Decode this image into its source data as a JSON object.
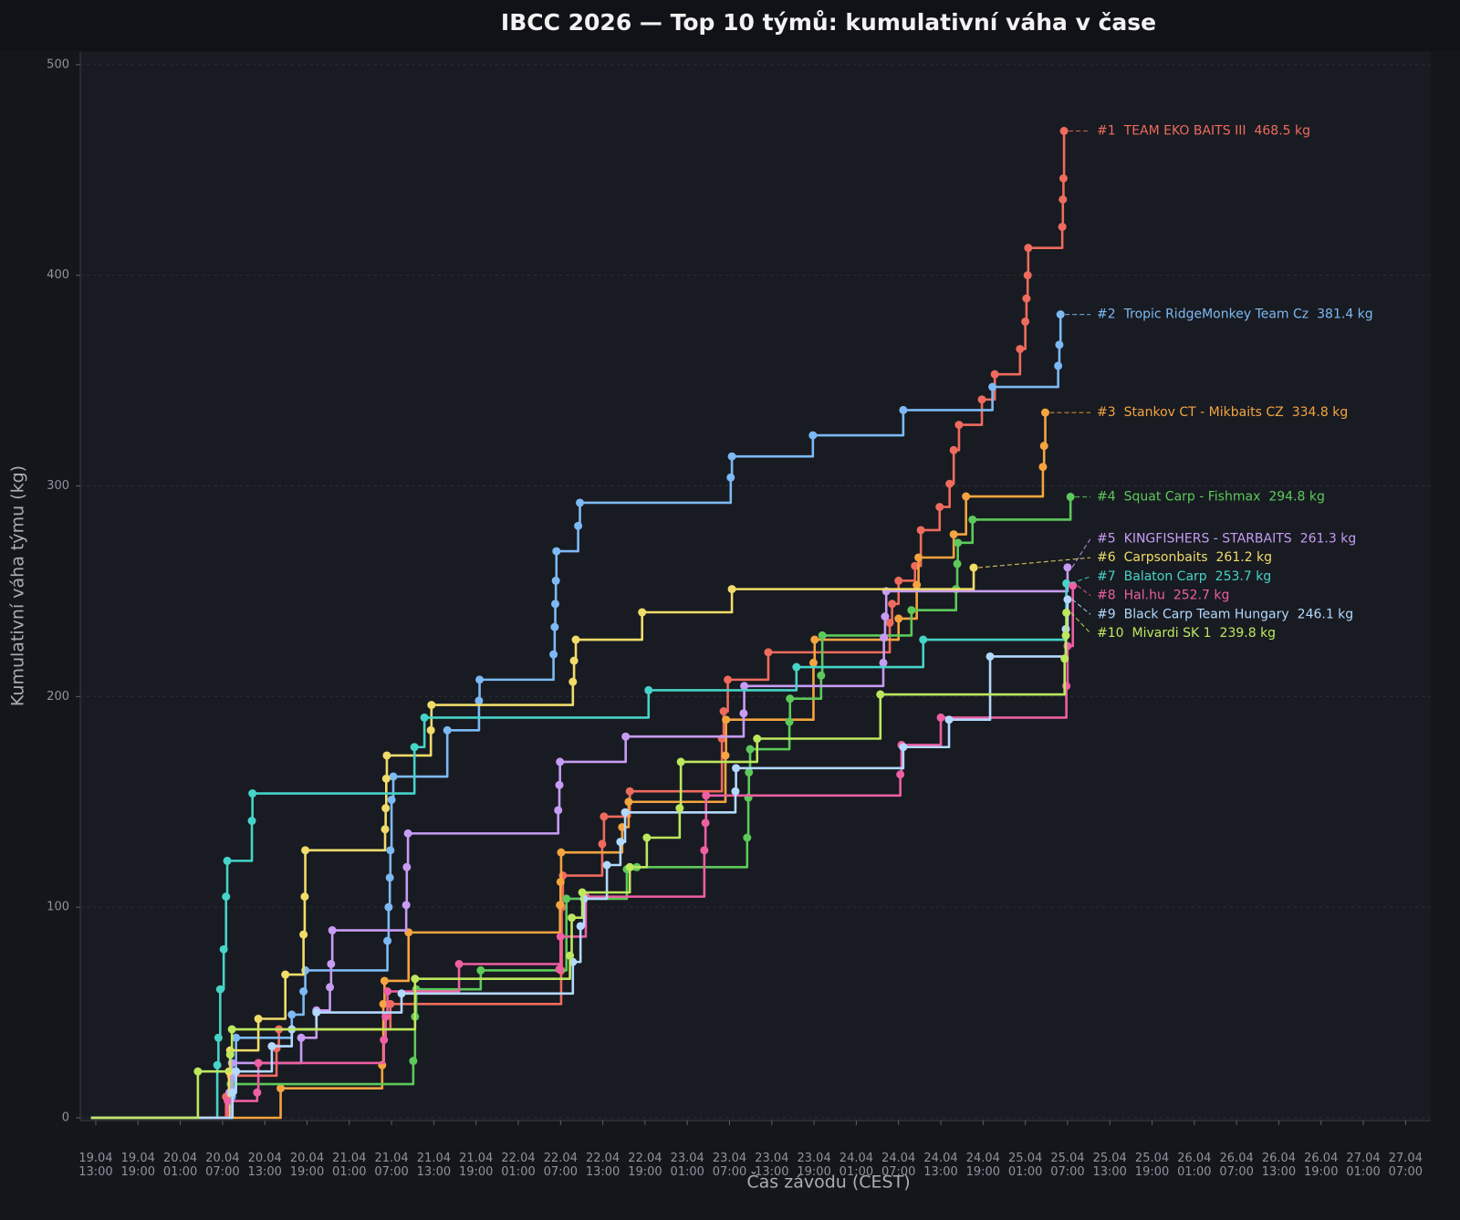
{
  "chart_data": {
    "type": "step",
    "title": "IBCC 2026 — Top 10 týmů: kumulativní váha v čase",
    "x_label": "Čas závodu (CEST)",
    "y_label": "Kumulativní váha týmu (kg)",
    "xlim": [
      "19.04 10:48",
      "27.04 10:35"
    ],
    "ylim": [
      -1.3,
      506
    ],
    "yticks": [
      0,
      100,
      200,
      300,
      400,
      500
    ],
    "xticks": [
      "19.04 13:00",
      "19.04 19:00",
      "20.04 01:00",
      "20.04 07:00",
      "20.04 13:00",
      "20.04 19:00",
      "21.04 01:00",
      "21.04 07:00",
      "21.04 13:00",
      "21.04 19:00",
      "22.04 01:00",
      "22.04 07:00",
      "22.04 13:00",
      "22.04 19:00",
      "23.04 01:00",
      "23.04 07:00",
      "23.04 13:00",
      "23.04 19:00",
      "24.04 01:00",
      "24.04 07:00",
      "24.04 13:00",
      "24.04 19:00",
      "25.04 01:00",
      "25.04 07:00",
      "25.04 13:00",
      "25.04 19:00",
      "26.04 01:00",
      "26.04 07:00",
      "26.04 13:00",
      "26.04 19:00",
      "27.04 01:00",
      "27.04 07:00"
    ],
    "grid": true,
    "series": [
      {
        "name": "TEAM EKO BAITS III",
        "rank": "#1",
        "value_label": "468.5 kg",
        "color": "#ef6b5e",
        "x": [
          "19.04 12:20",
          "20.04 07:30",
          "20.04 08:10",
          "20.04 14:40",
          "20.04 15:00",
          "21.04 06:50",
          "22.04 07:05",
          "22.04 07:10",
          "22.04 07:20",
          "22.04 12:55",
          "22.04 13:10",
          "22.04 16:50",
          "23.04 05:55",
          "23.04 06:10",
          "23.04 06:45",
          "23.04 12:30",
          "24.04 05:45",
          "24.04 06:05",
          "24.04 07:00",
          "24.04 09:20",
          "24.04 10:10",
          "24.04 12:50",
          "24.04 14:15",
          "24.04 14:50",
          "24.04 15:35",
          "24.04 18:50",
          "24.04 20:40",
          "25.04 00:15",
          "25.04 01:00",
          "25.04 01:10",
          "25.04 01:20",
          "25.04 01:25",
          "25.04 06:15",
          "25.04 06:20",
          "25.04 06:25",
          "25.04 06:30"
        ],
        "values": [
          0,
          10,
          20,
          33,
          42,
          54,
          70,
          100,
          115,
          130,
          143,
          155,
          180,
          193,
          208,
          221,
          235,
          244,
          255,
          262,
          279,
          290,
          301,
          317,
          329,
          341,
          353,
          365,
          378,
          389,
          400,
          413,
          423,
          436,
          446,
          468.5
        ]
      },
      {
        "name": "Tropic RidgeMonkey Team Cz",
        "rank": "#2",
        "value_label": "381.4 kg",
        "color": "#7db9f4",
        "x": [
          "19.04 12:20",
          "20.04 08:20",
          "20.04 08:40",
          "20.04 08:55",
          "20.04 16:50",
          "20.04 18:30",
          "20.04 18:45",
          "21.04 06:25",
          "21.04 06:35",
          "21.04 06:45",
          "21.04 06:50",
          "21.04 07:00",
          "21.04 07:15",
          "21.04 14:55",
          "21.04 19:25",
          "21.04 19:30",
          "22.04 06:00",
          "22.04 06:10",
          "22.04 06:15",
          "22.04 06:20",
          "22.04 06:25",
          "22.04 09:30",
          "22.04 09:45",
          "23.04 07:10",
          "23.04 07:20",
          "23.04 18:50",
          "24.04 07:40",
          "24.04 20:20",
          "25.04 05:40",
          "25.04 05:50",
          "25.04 06:00"
        ],
        "values": [
          0,
          10,
          22,
          38,
          49,
          60,
          70,
          84,
          100,
          114,
          127,
          151,
          162,
          184,
          198,
          208,
          220,
          233,
          244,
          255,
          269,
          281,
          292,
          304,
          314,
          324,
          336,
          347,
          357,
          367,
          381.4
        ]
      },
      {
        "name": "Stankov CT - Mikbaits CZ",
        "rank": "#3",
        "value_label": "334.8 kg",
        "color": "#f5a440",
        "x": [
          "19.04 12:20",
          "20.04 15:15",
          "21.04 05:40",
          "21.04 05:50",
          "21.04 06:00",
          "21.04 09:25",
          "22.04 06:55",
          "22.04 07:00",
          "22.04 07:05",
          "22.04 15:45",
          "22.04 16:40",
          "23.04 06:25",
          "23.04 06:30",
          "23.04 18:55",
          "23.04 19:05",
          "24.04 07:00",
          "24.04 09:35",
          "24.04 09:50",
          "24.04 14:50",
          "24.04 16:35",
          "25.04 03:30",
          "25.04 03:40",
          "25.04 03:50"
        ],
        "values": [
          0,
          14,
          25,
          54,
          65,
          88,
          101,
          112,
          126,
          138,
          150,
          172,
          189,
          216,
          227,
          237,
          253,
          266,
          277,
          295,
          309,
          319,
          334.8
        ]
      },
      {
        "name": "Squat Carp - Fishmax",
        "rank": "#4",
        "value_label": "294.8 kg",
        "color": "#5dc95b",
        "x": [
          "19.04 12:20",
          "20.04 08:10",
          "21.04 10:05",
          "21.04 10:20",
          "21.04 10:30",
          "21.04 19:40",
          "22.04 07:50",
          "22.04 16:25",
          "22.04 17:50",
          "23.04 09:30",
          "23.04 09:40",
          "23.04 09:45",
          "23.04 09:55",
          "23.04 15:30",
          "23.04 15:35",
          "23.04 20:00",
          "23.04 20:10",
          "24.04 08:50",
          "24.04 15:10",
          "24.04 15:20",
          "24.04 15:25",
          "24.04 17:30",
          "25.04 07:25"
        ],
        "values": [
          0,
          16,
          27,
          48,
          61,
          70,
          104,
          118,
          119,
          133,
          152,
          164,
          175,
          188,
          199,
          210,
          229,
          241,
          251,
          263,
          273,
          284,
          294.8
        ]
      },
      {
        "name": "KINGFISHERS - STARBAITS",
        "rank": "#5",
        "value_label": "261.3 kg",
        "color": "#c79cf5",
        "x": [
          "19.04 12:20",
          "20.04 08:00",
          "20.04 08:20",
          "20.04 18:10",
          "20.04 20:20",
          "20.04 22:15",
          "20.04 22:25",
          "20.04 22:35",
          "21.04 09:05",
          "21.04 09:10",
          "21.04 09:20",
          "22.04 06:40",
          "22.04 06:50",
          "22.04 06:55",
          "22.04 16:15",
          "23.04 09:00",
          "23.04 09:05",
          "24.04 04:50",
          "24.04 04:55",
          "24.04 05:05",
          "24.04 05:15",
          "25.04 07:00"
        ],
        "values": [
          0,
          12,
          26,
          38,
          51,
          62,
          73,
          89,
          101,
          119,
          135,
          146,
          158,
          169,
          181,
          192,
          205,
          216,
          228,
          238,
          250,
          261.3
        ]
      },
      {
        "name": "Carpsonbaits",
        "rank": "#6",
        "value_label": "261.2 kg",
        "color": "#f1dc6a",
        "x": [
          "19.04 12:20",
          "20.04 07:55",
          "20.04 08:05",
          "20.04 12:05",
          "20.04 15:55",
          "20.04 18:30",
          "20.04 18:40",
          "20.04 18:45",
          "21.04 06:05",
          "21.04 06:10",
          "21.04 06:15",
          "21.04 06:20",
          "21.04 12:35",
          "21.04 12:40",
          "22.04 08:45",
          "22.04 08:55",
          "22.04 09:10",
          "22.04 18:35",
          "23.04 07:20",
          "24.04 17:40"
        ],
        "values": [
          0,
          22,
          32,
          47,
          68,
          87,
          105,
          127,
          137,
          147,
          161,
          172,
          184,
          196,
          207,
          217,
          227,
          240,
          251,
          261.2
        ]
      },
      {
        "name": "Balaton Carp",
        "rank": "#7",
        "value_label": "253.7 kg",
        "color": "#46d3c9",
        "x": [
          "19.04 12:20",
          "20.04 06:15",
          "20.04 06:25",
          "20.04 06:40",
          "20.04 07:10",
          "20.04 07:30",
          "20.04 07:40",
          "20.04 11:10",
          "20.04 11:15",
          "21.04 10:15",
          "21.04 11:40",
          "22.04 19:30",
          "23.04 16:30",
          "24.04 10:30",
          "25.04 06:50"
        ],
        "values": [
          0,
          25,
          38,
          61,
          80,
          105,
          122,
          141,
          154,
          176,
          190,
          203,
          214,
          227,
          253.7
        ]
      },
      {
        "name": "Hal.hu",
        "rank": "#8",
        "value_label": "252.7 kg",
        "color": "#ee5fa3",
        "x": [
          "19.04 12:20",
          "20.04 07:45",
          "20.04 11:55",
          "20.04 12:05",
          "21.04 05:55",
          "21.04 06:10",
          "21.04 06:25",
          "21.04 16:35",
          "22.04 06:50",
          "22.04 07:00",
          "22.04 10:35",
          "23.04 03:25",
          "23.04 03:35",
          "23.04 03:40",
          "24.04 07:15",
          "24.04 07:25",
          "24.04 13:00",
          "25.04 06:50",
          "25.04 07:00",
          "25.04 07:45"
        ],
        "values": [
          0,
          8,
          12,
          26,
          37,
          48,
          60,
          73,
          70.5,
          86,
          105,
          127,
          140,
          153,
          163,
          177,
          190,
          205,
          224,
          252.7
        ]
      },
      {
        "name": "Black Carp Team Hungary",
        "rank": "#9",
        "value_label": "246.1 kg",
        "color": "#b3d9ff",
        "x": [
          "19.04 12:20",
          "20.04 08:25",
          "20.04 08:55",
          "20.04 14:00",
          "20.04 16:50",
          "20.04 20:20",
          "21.04 08:25",
          "22.04 08:45",
          "22.04 09:50",
          "22.04 10:20",
          "22.04 13:35",
          "22.04 15:30",
          "22.04 16:10",
          "23.04 07:50",
          "23.04 07:55",
          "24.04 07:40",
          "24.04 14:10",
          "24.04 20:00",
          "25.04 06:45",
          "25.04 07:00"
        ],
        "values": [
          0,
          12,
          22,
          34,
          42,
          50,
          59,
          74,
          91,
          104,
          120,
          131,
          145,
          155,
          166,
          176,
          189,
          219,
          232,
          246.1
        ]
      },
      {
        "name": "Mivardi SK 1",
        "rank": "#10",
        "value_label": "239.8 kg",
        "color": "#bde85e",
        "x": [
          "19.04 12:20",
          "20.04 03:30",
          "20.04 08:05",
          "20.04 08:20",
          "21.04 10:20",
          "22.04 08:20",
          "22.04 08:35",
          "22.04 10:05",
          "22.04 16:50",
          "22.04 19:15",
          "22.04 23:55",
          "23.04 00:05",
          "23.04 10:55",
          "24.04 04:25",
          "25.04 06:35",
          "25.04 06:45",
          "25.04 06:50"
        ],
        "values": [
          0,
          22,
          30,
          42,
          66,
          77,
          95,
          107,
          119,
          133,
          147,
          169,
          180,
          201,
          218,
          229,
          239.8
        ]
      }
    ]
  }
}
